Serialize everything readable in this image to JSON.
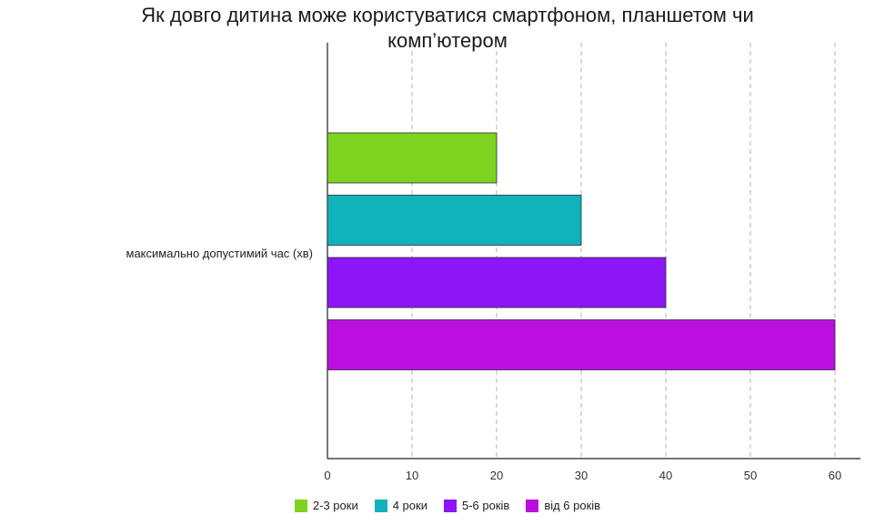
{
  "chart_data": {
    "type": "bar",
    "orientation": "horizontal",
    "title": "Як довго дитина може користуватися смартфоном, планшетом чи комп’ютером",
    "title_lines": [
      "Як довго дитина може користуватися смартфоном, планшетом чи",
      "комп’ютером"
    ],
    "categories": [
      "максимально допустимий час (хв)"
    ],
    "series": [
      {
        "name": "2-3 роки",
        "values": [
          20
        ],
        "color": "#7ed321"
      },
      {
        "name": "4 роки",
        "values": [
          30
        ],
        "color": "#10b2bb"
      },
      {
        "name": "5-6 років",
        "values": [
          40
        ],
        "color": "#8c16f5"
      },
      {
        "name": "від 6 років",
        "values": [
          60
        ],
        "color": "#bb0fe0"
      }
    ],
    "xlim": [
      0,
      63
    ],
    "xticks": [
      "0",
      "10",
      "20",
      "30",
      "40",
      "50",
      "60"
    ],
    "grid": true,
    "legend_position": "bottom"
  }
}
